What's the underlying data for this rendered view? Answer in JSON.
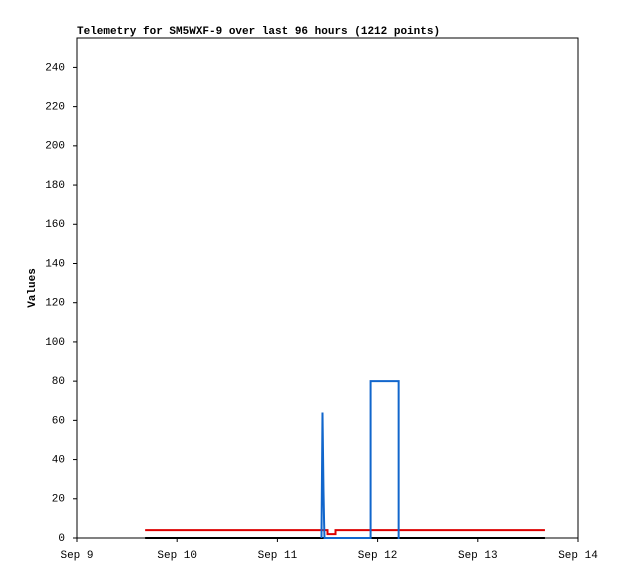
{
  "chart_data": {
    "type": "line",
    "title": "Telemetry for SM5WXF-9 over last 96 hours (1212 points)",
    "y_label": "Values",
    "xlim": [
      0,
      5
    ],
    "xticks": [
      {
        "value": 0,
        "label": "Sep 9"
      },
      {
        "value": 1,
        "label": "Sep 10"
      },
      {
        "value": 2,
        "label": "Sep 11"
      },
      {
        "value": 3,
        "label": "Sep 12"
      },
      {
        "value": 4,
        "label": "Sep 13"
      },
      {
        "value": 5,
        "label": "Sep 14"
      }
    ],
    "ylim": [
      0,
      255
    ],
    "yticks": [
      0,
      20,
      40,
      60,
      80,
      100,
      120,
      140,
      160,
      180,
      200,
      220,
      240
    ],
    "series": [
      {
        "color": "#000000",
        "x": [
          0.68,
          4.67
        ],
        "values": [
          0,
          0
        ]
      },
      {
        "color": "#dd0000",
        "x": [
          0.68,
          2.5,
          2.5,
          2.58,
          2.58,
          4.67
        ],
        "values": [
          4,
          4,
          2,
          2,
          4,
          4
        ]
      },
      {
        "color": "#1166cc",
        "x": [
          2.44,
          2.45,
          2.452,
          2.456,
          2.46,
          2.466,
          2.47,
          2.48,
          2.93,
          2.93,
          3.21,
          3.21,
          3.22
        ],
        "values": [
          0,
          64,
          56,
          40,
          24,
          8,
          0,
          0,
          0,
          80,
          80,
          0,
          0
        ]
      }
    ]
  }
}
